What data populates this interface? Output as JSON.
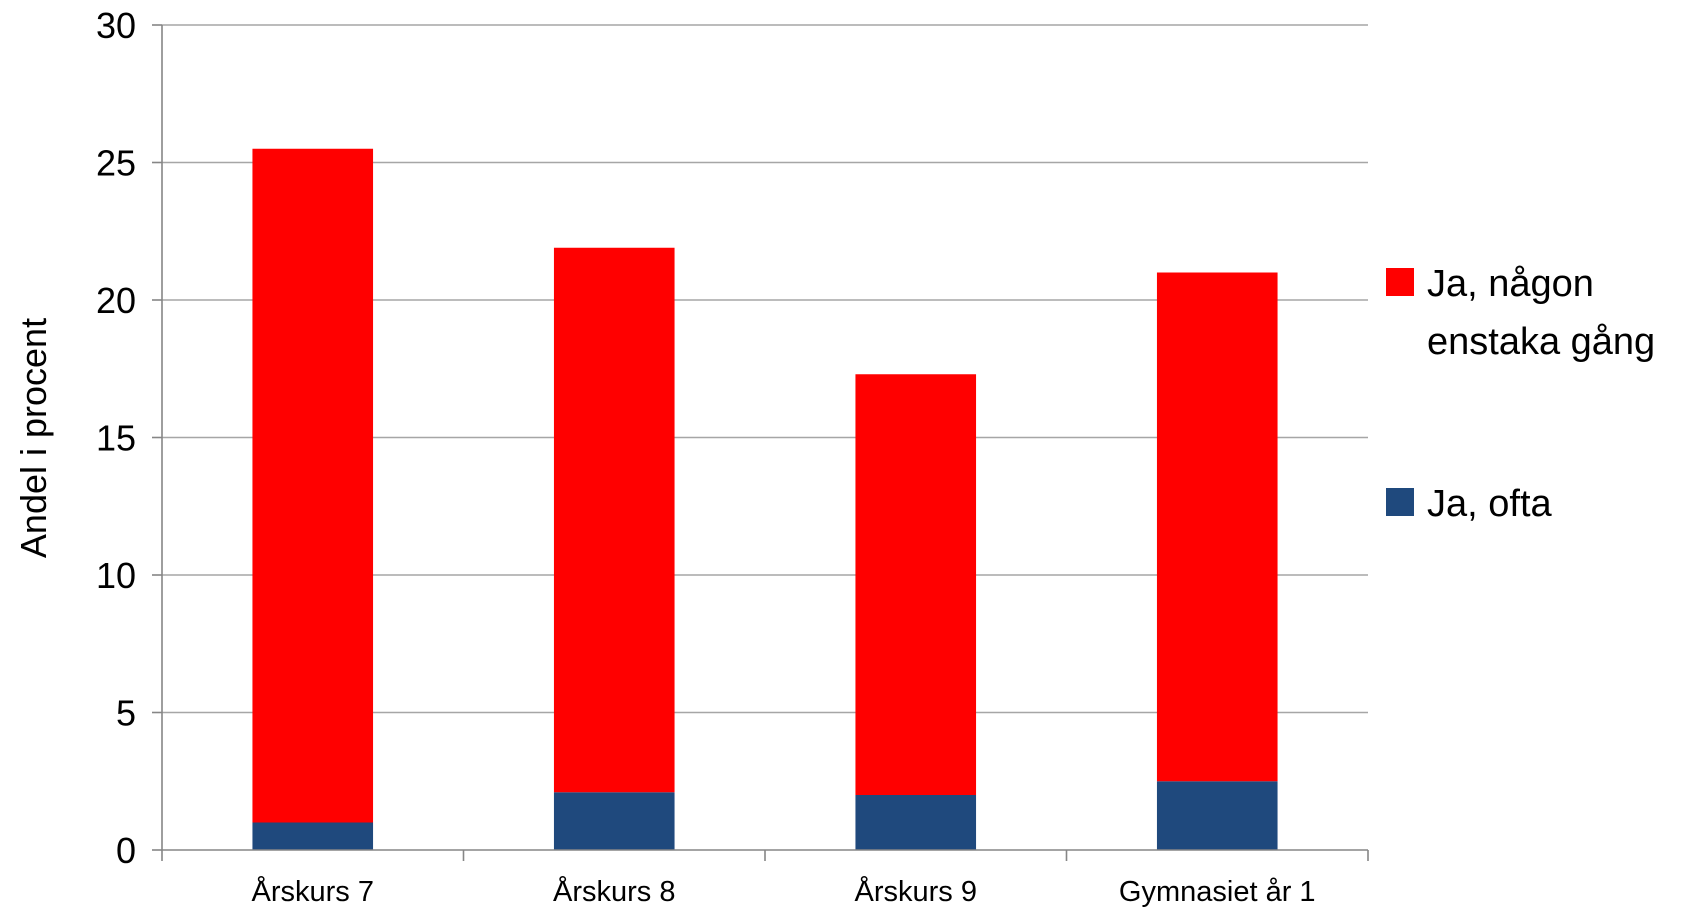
{
  "chart_data": {
    "type": "bar",
    "stacked": true,
    "title": "",
    "xlabel": "",
    "ylabel": "Andel i procent",
    "ylim": [
      0,
      30
    ],
    "yticks": [
      0,
      5,
      10,
      15,
      20,
      25,
      30
    ],
    "grid": true,
    "legend_position": "right",
    "categories": [
      "Årskurs 7",
      "Årskurs 8",
      "Årskurs 9",
      "Gymnasiet år 1"
    ],
    "series": [
      {
        "name": "Ja, ofta",
        "color": "#1F497D",
        "values": [
          1.0,
          2.1,
          2.0,
          2.5
        ]
      },
      {
        "name": "Ja, någon enstaka gång",
        "color": "#FF0000",
        "values": [
          24.5,
          19.8,
          15.3,
          18.5
        ]
      }
    ],
    "legend": [
      {
        "lines": [
          "Ja, någon",
          "enstaka gång"
        ],
        "color": "#FF0000"
      },
      {
        "lines": [
          "Ja, ofta"
        ],
        "color": "#1F497D"
      }
    ]
  }
}
